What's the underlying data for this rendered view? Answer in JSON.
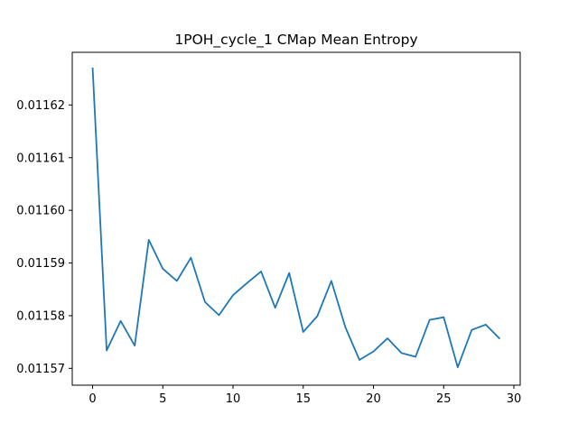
{
  "chart_data": {
    "type": "line",
    "title": "1POH_cycle_1 CMap Mean Entropy",
    "xlabel": "",
    "ylabel": "",
    "xlim": [
      -1.45,
      30.45
    ],
    "ylim": [
      0.0115668,
      0.01163
    ],
    "xticks": [
      0,
      5,
      10,
      15,
      20,
      25,
      30
    ],
    "yticks": [
      0.01157,
      0.01158,
      0.01159,
      0.0116,
      0.01161,
      0.01162
    ],
    "ytick_labels": [
      "0.01157",
      "0.01158",
      "0.01159",
      "0.01160",
      "0.01161",
      "0.01162"
    ],
    "grid": false,
    "line_color": "#1f77b4",
    "series": [
      {
        "x": [
          0,
          1,
          2,
          3,
          4,
          5,
          6,
          7,
          8,
          9,
          10,
          11,
          12,
          13,
          14,
          15,
          16,
          17,
          18,
          19,
          20,
          21,
          22,
          23,
          24,
          25,
          26,
          27,
          28,
          29
        ],
        "values": [
          0.0116271,
          0.0115734,
          0.011579,
          0.0115743,
          0.0115944,
          0.0115889,
          0.0115866,
          0.011591,
          0.0115826,
          0.0115801,
          0.0115839,
          0.0115862,
          0.0115884,
          0.0115815,
          0.0115881,
          0.0115769,
          0.0115799,
          0.0115866,
          0.0115778,
          0.0115716,
          0.0115732,
          0.0115757,
          0.0115729,
          0.0115722,
          0.0115792,
          0.0115797,
          0.0115702,
          0.0115773,
          0.0115783,
          0.0115756
        ]
      }
    ]
  }
}
